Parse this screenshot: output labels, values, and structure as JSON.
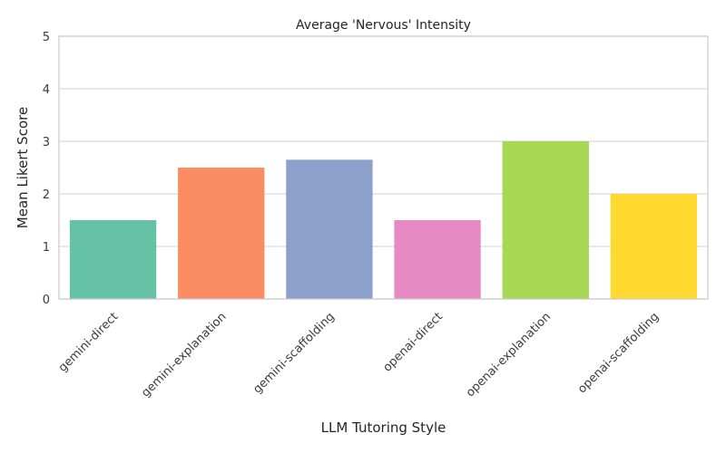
{
  "chart_data": {
    "type": "bar",
    "title": "Average 'Nervous' Intensity",
    "xlabel": "LLM Tutoring Style",
    "ylabel": "Mean Likert Score",
    "categories": [
      "gemini-direct",
      "gemini-explanation",
      "gemini-scaffolding",
      "openai-direct",
      "openai-explanation",
      "openai-scaffolding"
    ],
    "values": [
      1.5,
      2.5,
      2.65,
      1.5,
      3.0,
      2.0
    ],
    "ylim": [
      0,
      5
    ],
    "yticks": [
      "0",
      "1",
      "2",
      "3",
      "4",
      "5"
    ],
    "colors": [
      "#66c2a5",
      "#fc8d62",
      "#8da0cb",
      "#e78ac3",
      "#a6d854",
      "#ffd92f"
    ],
    "grid": "horizontal",
    "legend": "none"
  }
}
